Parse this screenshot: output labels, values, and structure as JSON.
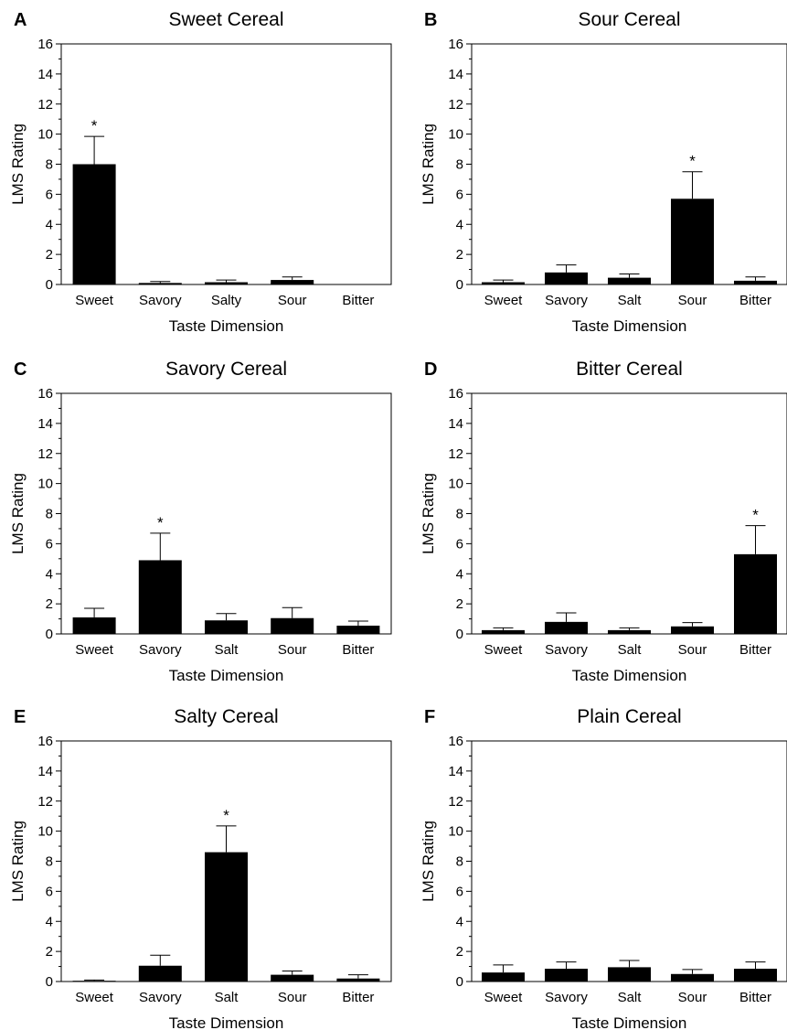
{
  "chart_data": [
    {
      "panel": "A",
      "type": "bar",
      "title": "Sweet Cereal",
      "xlabel": "Taste Dimension",
      "ylabel": "LMS Rating",
      "ylim": [
        0,
        16
      ],
      "yticks": [
        "0",
        "2",
        "4",
        "6",
        "8",
        "10",
        "12",
        "14",
        "16"
      ],
      "categories": [
        "Sweet",
        "Savory",
        "Salty",
        "Sour",
        "Bitter"
      ],
      "values": [
        8.0,
        0.1,
        0.15,
        0.3,
        0.0
      ],
      "errors": [
        1.85,
        0.1,
        0.15,
        0.2,
        0.0
      ],
      "significant": [
        true,
        false,
        false,
        false,
        false
      ],
      "marker": "*",
      "grid": false
    },
    {
      "panel": "B",
      "type": "bar",
      "title": "Sour Cereal",
      "xlabel": "Taste Dimension",
      "ylabel": "LMS Rating",
      "ylim": [
        0,
        16
      ],
      "yticks": [
        "0",
        "2",
        "4",
        "6",
        "8",
        "10",
        "12",
        "14",
        "16"
      ],
      "categories": [
        "Sweet",
        "Savory",
        "Salt",
        "Sour",
        "Bitter"
      ],
      "values": [
        0.15,
        0.8,
        0.45,
        5.7,
        0.25
      ],
      "errors": [
        0.15,
        0.5,
        0.25,
        1.8,
        0.25
      ],
      "significant": [
        false,
        false,
        false,
        true,
        false
      ],
      "marker": "*",
      "grid": false
    },
    {
      "panel": "C",
      "type": "bar",
      "title": "Savory Cereal",
      "xlabel": "Taste Dimension",
      "ylabel": "LMS Rating",
      "ylim": [
        0,
        16
      ],
      "yticks": [
        "0",
        "2",
        "4",
        "6",
        "8",
        "10",
        "12",
        "14",
        "16"
      ],
      "categories": [
        "Sweet",
        "Savory",
        "Salt",
        "Sour",
        "Bitter"
      ],
      "values": [
        1.1,
        4.9,
        0.9,
        1.05,
        0.55
      ],
      "errors": [
        0.6,
        1.8,
        0.45,
        0.7,
        0.3
      ],
      "significant": [
        false,
        true,
        false,
        false,
        false
      ],
      "marker": "*",
      "grid": false
    },
    {
      "panel": "D",
      "type": "bar",
      "title": "Bitter Cereal",
      "xlabel": "Taste Dimension",
      "ylabel": "LMS Rating",
      "ylim": [
        0,
        16
      ],
      "yticks": [
        "0",
        "2",
        "4",
        "6",
        "8",
        "10",
        "12",
        "14",
        "16"
      ],
      "categories": [
        "Sweet",
        "Savory",
        "Salt",
        "Sour",
        "Bitter"
      ],
      "values": [
        0.25,
        0.8,
        0.25,
        0.5,
        5.3
      ],
      "errors": [
        0.15,
        0.6,
        0.15,
        0.25,
        1.9
      ],
      "significant": [
        false,
        false,
        false,
        false,
        true
      ],
      "marker": "*",
      "grid": false
    },
    {
      "panel": "E",
      "type": "bar",
      "title": "Salty Cereal",
      "xlabel": "Taste Dimension",
      "ylabel": "LMS Rating",
      "ylim": [
        0,
        16
      ],
      "yticks": [
        "0",
        "2",
        "4",
        "6",
        "8",
        "10",
        "12",
        "14",
        "16"
      ],
      "categories": [
        "Sweet",
        "Savory",
        "Salt",
        "Sour",
        "Bitter"
      ],
      "values": [
        0.05,
        1.05,
        8.6,
        0.45,
        0.2
      ],
      "errors": [
        0.05,
        0.7,
        1.75,
        0.25,
        0.25
      ],
      "significant": [
        false,
        false,
        true,
        false,
        false
      ],
      "marker": "*",
      "grid": false
    },
    {
      "panel": "F",
      "type": "bar",
      "title": "Plain Cereal",
      "xlabel": "Taste Dimension",
      "ylabel": "LMS Rating",
      "ylim": [
        0,
        16
      ],
      "yticks": [
        "0",
        "2",
        "4",
        "6",
        "8",
        "10",
        "12",
        "14",
        "16"
      ],
      "categories": [
        "Sweet",
        "Savory",
        "Salt",
        "Sour",
        "Bitter"
      ],
      "values": [
        0.6,
        0.85,
        0.95,
        0.5,
        0.85
      ],
      "errors": [
        0.5,
        0.45,
        0.45,
        0.3,
        0.45
      ],
      "significant": [
        false,
        false,
        false,
        false,
        false
      ],
      "marker": "*",
      "grid": false
    }
  ],
  "colors": {
    "bar": "#000000",
    "axis": "#000000",
    "background": "#ffffff"
  }
}
